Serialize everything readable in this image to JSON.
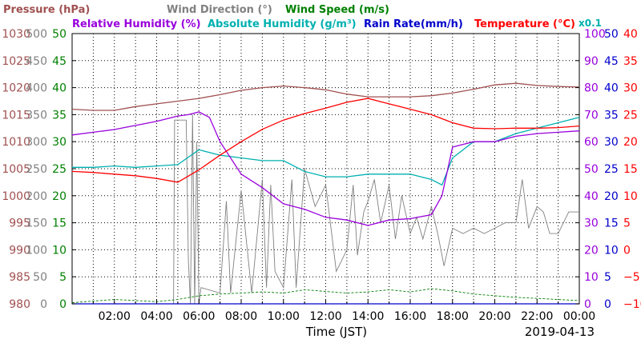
{
  "chart_data": {
    "type": "line",
    "date": "2019-04-13",
    "xlabel": "Time (JST)",
    "x_ticks": [
      "02:00",
      "04:00",
      "06:00",
      "08:00",
      "10:00",
      "12:00",
      "14:00",
      "16:00",
      "18:00",
      "20:00",
      "22:00",
      "00:00"
    ],
    "x_range_hours": [
      0,
      24
    ],
    "scale_note": "x0.1",
    "axes": {
      "pressure": {
        "label": "Pressure (hPa)",
        "ticks": [
          980,
          985,
          990,
          995,
          1000,
          1005,
          1010,
          1015,
          1020,
          1025,
          1030
        ],
        "range": [
          980,
          1030
        ],
        "color": "#a05050"
      },
      "wind_direction": {
        "label": "Wind Direction (°)",
        "ticks": [
          0,
          50,
          100,
          150,
          200,
          250,
          300,
          350,
          400,
          450,
          500
        ],
        "range": [
          0,
          500
        ],
        "color": "#808080"
      },
      "wind_speed": {
        "label": "Wind Speed (m/s)",
        "ticks": [
          0,
          5,
          10,
          15,
          20,
          25,
          30,
          35,
          40,
          45,
          50
        ],
        "range": [
          0,
          50
        ],
        "color": "#008000"
      },
      "relative_humidity": {
        "label": "Relative Humidity (%)",
        "ticks": [
          0,
          10,
          20,
          30,
          40,
          50,
          60,
          70,
          80,
          90,
          100
        ],
        "range": [
          0,
          100
        ],
        "color": "#9900dd"
      },
      "absolute_humidity": {
        "label": "Absolute Humidity (g/m³)",
        "ticks": [
          0,
          10,
          20,
          30,
          40,
          50,
          60,
          70,
          80,
          90,
          100
        ],
        "range": [
          0,
          100
        ],
        "color": "#00b0b0"
      },
      "rain_rate": {
        "label": "Rain Rate(mm/h)",
        "ticks": [
          0,
          5,
          10,
          15,
          20,
          25,
          30,
          35,
          40,
          45,
          50
        ],
        "range": [
          0,
          50
        ],
        "color": "#0000cc"
      },
      "temperature": {
        "label": "Temperature (°C)",
        "ticks": [
          -10,
          -5,
          0,
          5,
          10,
          15,
          20,
          25,
          30,
          35,
          40
        ],
        "range": [
          -10,
          40
        ],
        "color": "#ff0000"
      }
    },
    "series": [
      {
        "name": "Pressure",
        "axis": "pressure",
        "color": "#a05050",
        "x": [
          0,
          1,
          2,
          3,
          4,
          5,
          6,
          7,
          8,
          9,
          10,
          11,
          12,
          13,
          14,
          15,
          16,
          17,
          18,
          19,
          20,
          21,
          22,
          23,
          24
        ],
        "values": [
          1016,
          1015.8,
          1015.8,
          1016.5,
          1017,
          1017.5,
          1018,
          1018.7,
          1019.5,
          1020,
          1020.3,
          1020,
          1019.6,
          1018.8,
          1018.3,
          1018.3,
          1018.3,
          1018.5,
          1019,
          1019.7,
          1020.5,
          1020.8,
          1020.4,
          1020.2,
          1020.1
        ]
      },
      {
        "name": "Temperature",
        "axis": "temperature",
        "color": "#ff0000",
        "x": [
          0,
          1,
          2,
          3,
          4,
          5,
          6,
          7,
          8,
          9,
          10,
          11,
          12,
          13,
          14,
          15,
          16,
          17,
          18,
          19,
          20,
          21,
          22,
          23,
          24
        ],
        "values": [
          14.5,
          14.3,
          14,
          13.7,
          13.2,
          12.5,
          14.8,
          17.5,
          20,
          22.3,
          24,
          25.2,
          26.2,
          27.3,
          28,
          27,
          26,
          25,
          23.5,
          22.5,
          22.4,
          22.5,
          22.5,
          22.6,
          22.9
        ]
      },
      {
        "name": "Relative Humidity",
        "axis": "relative_humidity",
        "color": "#9900dd",
        "x": [
          0,
          1,
          2,
          3,
          4,
          5,
          5.5,
          6,
          6.5,
          7,
          8,
          9,
          10,
          11,
          12,
          13,
          14,
          15,
          16,
          17,
          17.5,
          18,
          19,
          20,
          21,
          22,
          23,
          24
        ],
        "values": [
          62.5,
          63.5,
          64.5,
          66,
          67.5,
          69.5,
          70,
          71,
          69,
          60,
          48,
          43,
          37,
          35,
          32,
          31,
          29,
          31,
          31.5,
          33,
          40,
          58,
          60,
          60,
          62,
          63,
          63.5,
          64
        ]
      },
      {
        "name": "Absolute Humidity",
        "axis": "absolute_humidity",
        "color": "#00b0b0",
        "x": [
          0,
          1,
          2,
          3,
          4,
          5,
          6,
          7,
          8,
          9,
          10,
          11,
          12,
          13,
          14,
          15,
          16,
          17,
          17.5,
          18,
          19,
          20,
          21,
          22,
          23,
          24
        ],
        "values": [
          50.5,
          50.5,
          51,
          50.5,
          51,
          51.5,
          57,
          55,
          54,
          53,
          53,
          49,
          47,
          47,
          48,
          48,
          48,
          46,
          44,
          54,
          60,
          60,
          63,
          65,
          67,
          69
        ]
      },
      {
        "name": "Wind Direction",
        "axis": "wind_direction",
        "color": "#808080",
        "x": [
          0,
          4.8,
          4.85,
          4.9,
          5.4,
          5.5,
          5.6,
          5.7,
          5.8,
          5.9,
          6.0,
          6.1,
          7,
          7.3,
          7.5,
          8,
          8.5,
          9,
          9.2,
          9.4,
          9.6,
          10,
          10.4,
          10.6,
          11,
          11.5,
          12,
          12.5,
          13,
          13.3,
          13.5,
          13.8,
          14,
          14.3,
          14.6,
          15,
          15.3,
          15.6,
          16,
          16.3,
          16.6,
          17,
          17.3,
          17.6,
          18,
          18.5,
          19,
          19.5,
          20,
          20.5,
          21,
          21.3,
          21.6,
          22,
          22.3,
          22.6,
          23,
          23.5,
          24
        ],
        "values": [
          0,
          0,
          340,
          340,
          340,
          80,
          0,
          350,
          0,
          300,
          0,
          30,
          20,
          190,
          20,
          210,
          20,
          230,
          30,
          220,
          60,
          30,
          230,
          30,
          250,
          180,
          220,
          60,
          100,
          220,
          90,
          170,
          190,
          230,
          150,
          220,
          120,
          200,
          130,
          160,
          120,
          180,
          130,
          70,
          140,
          130,
          140,
          130,
          140,
          150,
          150,
          230,
          140,
          180,
          170,
          130,
          130,
          170,
          170
        ]
      },
      {
        "name": "Wind Speed",
        "axis": "wind_speed",
        "color": "#008000",
        "x": [
          0,
          1,
          2,
          3,
          4,
          5,
          6,
          7,
          8,
          9,
          10,
          11,
          12,
          13,
          14,
          15,
          16,
          17,
          18,
          19,
          20,
          21,
          22,
          23,
          24
        ],
        "values": [
          0.2,
          0.5,
          0.8,
          0.6,
          0.4,
          0.8,
          1.5,
          1.8,
          2.0,
          2.2,
          2.0,
          2.6,
          2.3,
          2.0,
          2.2,
          2.6,
          2.2,
          2.8,
          2.4,
          1.8,
          1.5,
          1.2,
          1.0,
          0.8,
          0.6
        ]
      },
      {
        "name": "Rain Rate",
        "axis": "rain_rate",
        "color": "#0000cc",
        "x": [
          0,
          24
        ],
        "values": [
          0,
          0
        ]
      }
    ],
    "legend": [
      {
        "text": "Pressure (hPa)",
        "color": "#a05050"
      },
      {
        "text": "Wind Direction (°)",
        "color": "#808080"
      },
      {
        "text": "Wind Speed (m/s)",
        "color": "#008000"
      },
      {
        "text": "Relative Humidity (%)",
        "color": "#9900dd"
      },
      {
        "text": "Absolute Humidity (g/m³)",
        "color": "#00b0b0"
      },
      {
        "text": "Rain Rate(mm/h)",
        "color": "#0000cc"
      },
      {
        "text": "Temperature (°C)",
        "color": "#ff0000"
      }
    ]
  }
}
